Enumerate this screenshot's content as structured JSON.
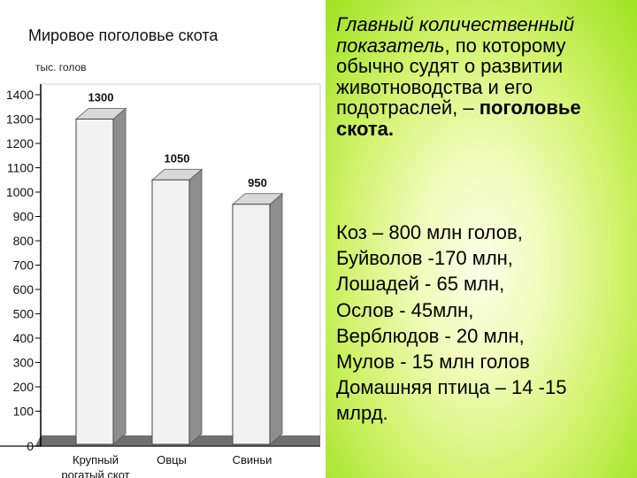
{
  "slide": {
    "title": "Мировое поголовье скота"
  },
  "chart_data": {
    "type": "bar",
    "ylabel": "тыс. голов",
    "categories": [
      "Крупный рогатый скот",
      "Овцы",
      "Свиньи"
    ],
    "category_lines": [
      [
        "Крупный",
        "рогатый скот"
      ],
      [
        "Овцы"
      ],
      [
        "Свиньи"
      ]
    ],
    "values": [
      1300,
      1050,
      950
    ],
    "value_labels": [
      "1300",
      "1050",
      "950"
    ],
    "ylim": [
      0,
      1400
    ],
    "yticks": [
      0,
      100,
      200,
      300,
      400,
      500,
      600,
      700,
      800,
      900,
      1000,
      1100,
      1200,
      1300,
      1400
    ],
    "grid": false,
    "three_d": true,
    "colors": {
      "bar_front": "#f2f2f2",
      "bar_side": "#8e8e8e",
      "bar_top": "#d8d8d8",
      "floor": "#6f6f6f",
      "axis": "#000000",
      "plot_bg": "#ffffff",
      "wall_edge": "#cfcfcf"
    }
  },
  "text": {
    "intro": {
      "lead": "Главный количественный показатель",
      "rest": ", по которому обычно судят о развитии животноводства и его подотраслей, –",
      "term": "поголовье скота."
    },
    "stats": [
      "Коз – 800 млн голов,",
      "Буйволов -170 млн,",
      "Лошадей - 65 млн,",
      "Ослов - 45млн,",
      "Верблюдов - 20 млн,",
      "Мулов - 15 млн голов",
      "Домашняя птица – 14 -15",
      "млрд."
    ]
  }
}
